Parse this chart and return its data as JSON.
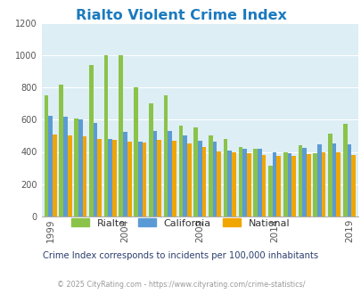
{
  "title": "Rialto Violent Crime Index",
  "subtitle": "Crime Index corresponds to incidents per 100,000 inhabitants",
  "copyright": "© 2025 CityRating.com - https://www.cityrating.com/crime-statistics/",
  "years": [
    1999,
    2000,
    2001,
    2002,
    2003,
    2004,
    2005,
    2006,
    2007,
    2008,
    2009,
    2010,
    2011,
    2012,
    2013,
    2014,
    2015,
    2016,
    2017,
    2018,
    2019
  ],
  "rialto": [
    750,
    820,
    610,
    940,
    1000,
    1005,
    800,
    700,
    750,
    565,
    550,
    500,
    480,
    430,
    420,
    315,
    400,
    440,
    390,
    515,
    575
  ],
  "california": [
    625,
    620,
    600,
    580,
    480,
    525,
    465,
    530,
    530,
    505,
    470,
    465,
    410,
    420,
    420,
    395,
    390,
    425,
    445,
    450,
    445
  ],
  "national": [
    510,
    500,
    495,
    480,
    475,
    465,
    460,
    475,
    470,
    455,
    430,
    405,
    395,
    390,
    380,
    375,
    375,
    385,
    395,
    395,
    380
  ],
  "rialto_color": "#8bc34a",
  "california_color": "#5b9bd5",
  "national_color": "#f0a500",
  "bg_color": "#ddeef5",
  "title_color": "#1a7abf",
  "subtitle_color": "#2c3e6e",
  "copyright_color": "#999999",
  "legend_text_color": "#333333",
  "ylim": [
    0,
    1200
  ],
  "yticks": [
    0,
    200,
    400,
    600,
    800,
    1000,
    1200
  ],
  "xtick_years": [
    1999,
    2004,
    2009,
    2014,
    2019
  ]
}
